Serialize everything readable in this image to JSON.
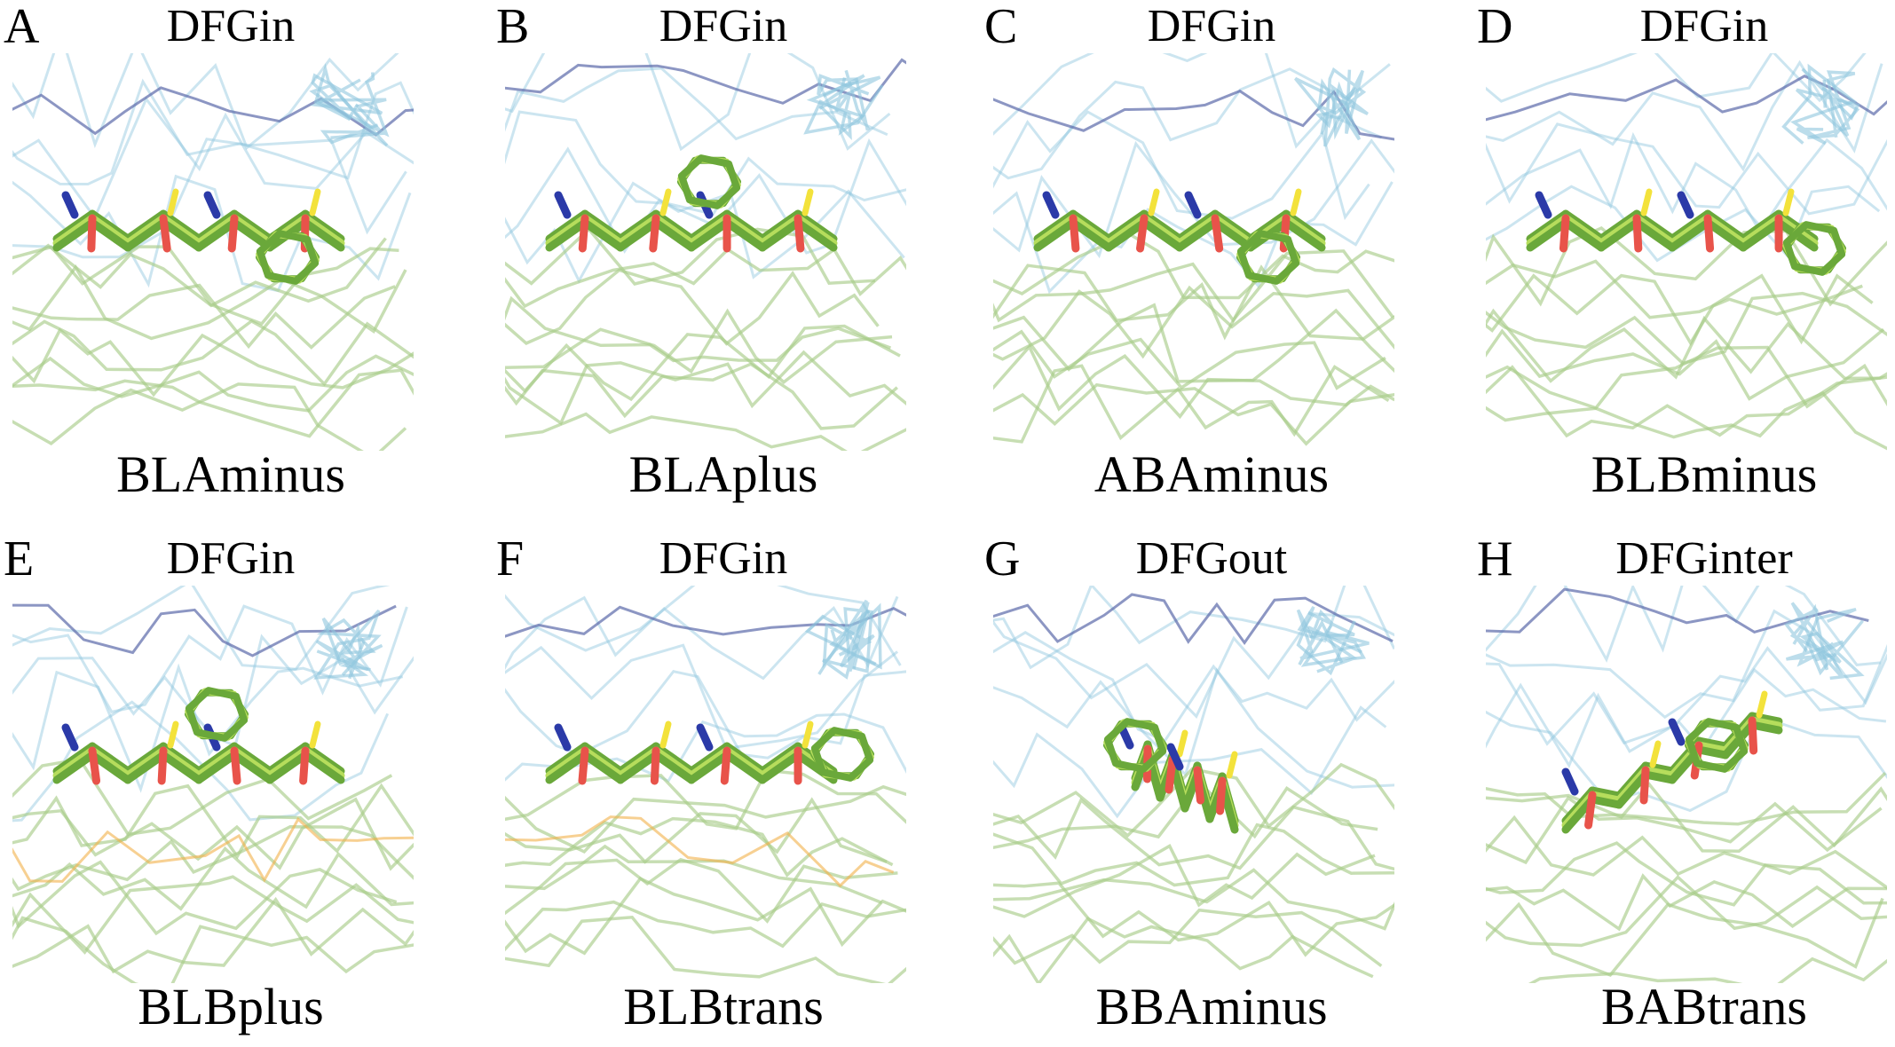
{
  "panels": [
    {
      "letter": "A",
      "dfg": "DFGin",
      "conformation": "BLAminus",
      "ligand": "flat"
    },
    {
      "letter": "B",
      "dfg": "DFGin",
      "conformation": "BLAplus",
      "ligand": "ring-up"
    },
    {
      "letter": "C",
      "dfg": "DFGin",
      "conformation": "ABAminus",
      "ligand": "flat"
    },
    {
      "letter": "D",
      "dfg": "DFGin",
      "conformation": "BLBminus",
      "ligand": "ring-down"
    },
    {
      "letter": "E",
      "dfg": "DFGin",
      "conformation": "BLBplus",
      "ligand": "ring-up"
    },
    {
      "letter": "F",
      "dfg": "DFGin",
      "conformation": "BLBtrans",
      "ligand": "ring-right"
    },
    {
      "letter": "G",
      "dfg": "DFGout",
      "conformation": "BBAminus",
      "ligand": "compact"
    },
    {
      "letter": "H",
      "dfg": "DFGinter",
      "conformation": "BABtrans",
      "ligand": "twisted"
    }
  ],
  "colors": {
    "ligand_carbon": "#6aa83a",
    "ligand_carbon_light": "#b6dd5c",
    "ligand_yellow": "#f3e23b",
    "oxygen": "#e8534a",
    "nitrogen": "#2b3aa8",
    "backbone_green": "#a9cd8a",
    "backbone_cyan": "#8fc6de",
    "backbone_navy": "#5b6aa9",
    "backbone_orange": "#f2b14a"
  }
}
